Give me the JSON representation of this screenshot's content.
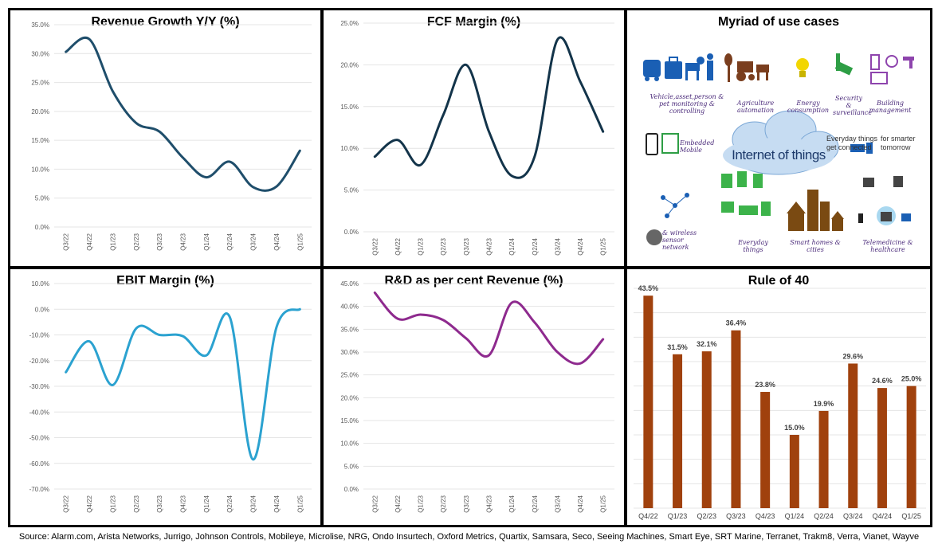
{
  "footer": {
    "source": "Source: Alarm.com, Arista Networks, Jurrigo, Johnson Controls, Mobileye, Microlise, NRG, Ondo Insurtech, Oxford Metrics, Quartix, Samsara, Seco, Seeing Machines, Smart Eye, SRT Marine, Terranet, Trakm8, Verra, Vianet, Wayve"
  },
  "infographic": {
    "title": "Myriad of use cases",
    "center": "Internet of things",
    "connected": "Everyday things get connected",
    "smarter": "for smarter tomorrow",
    "captions": {
      "vehicle": "Vehicle,asset,person & pet monitoring & controlling",
      "agriculture": "Agriculture automation",
      "energy": "Energy consumption",
      "security": "Security & surveillance",
      "building": "Building management",
      "embedded": "Embedded Mobile",
      "sensor": "& wireless sensor network",
      "everyday": "Everyday things",
      "smarthome": "Smart homes & cities",
      "telemedicine": "Telemedicine & healthcare"
    }
  },
  "chart_data": [
    {
      "id": "revenue",
      "type": "line",
      "title": "Revenue Growth Y/Y (%)",
      "color": "#1f4e6b",
      "categories": [
        "Q3/22",
        "Q4/22",
        "Q1/23",
        "Q2/23",
        "Q3/23",
        "Q4/23",
        "Q1/24",
        "Q2/24",
        "Q3/24",
        "Q4/24",
        "Q1/25"
      ],
      "values": [
        30.3,
        32.5,
        23.5,
        18.0,
        16.5,
        12.0,
        8.6,
        11.3,
        6.9,
        7.0,
        13.2
      ],
      "ylim": [
        0,
        35
      ],
      "yticks": [
        0,
        5,
        10,
        15,
        20,
        25,
        30,
        35
      ],
      "ytick_labels": [
        "0.0%",
        "5.0%",
        "10.0%",
        "15.0%",
        "20.0%",
        "25.0%",
        "30.0%",
        "35.0%"
      ]
    },
    {
      "id": "fcf",
      "type": "line",
      "title": "FCF Margin (%)",
      "color": "#13344a",
      "categories": [
        "Q3/22",
        "Q4/22",
        "Q1/23",
        "Q2/23",
        "Q3/23",
        "Q4/23",
        "Q1/24",
        "Q2/24",
        "Q3/24",
        "Q4/24",
        "Q1/25"
      ],
      "values": [
        9.0,
        11.0,
        8.0,
        14.0,
        20.0,
        12.0,
        6.7,
        9.0,
        23.0,
        18.0,
        12.0
      ],
      "ylim": [
        0,
        25
      ],
      "yticks": [
        0,
        5,
        10,
        15,
        20,
        25
      ],
      "ytick_labels": [
        "0.0%",
        "5.0%",
        "10.0%",
        "15.0%",
        "20.0%",
        "25.0%"
      ]
    },
    {
      "id": "ebit",
      "type": "line",
      "title": "EBIT Margin (%)",
      "color": "#2ba2d0",
      "categories": [
        "Q3/22",
        "Q4/22",
        "Q1/23",
        "Q2/23",
        "Q3/23",
        "Q4/23",
        "Q1/24",
        "Q2/24",
        "Q3/24",
        "Q4/24",
        "Q1/25"
      ],
      "values": [
        -24.5,
        -12.5,
        -29.5,
        -7.5,
        -10.0,
        -10.5,
        -18.0,
        -3.0,
        -58.5,
        -7.0,
        0.0
      ],
      "ylim": [
        -70,
        10
      ],
      "yticks": [
        -70,
        -60,
        -50,
        -40,
        -30,
        -20,
        -10,
        0,
        10
      ],
      "ytick_labels": [
        "-70.0%",
        "-60.0%",
        "-50.0%",
        "-40.0%",
        "-30.0%",
        "-20.0%",
        "-10.0%",
        "0.0%",
        "10.0%"
      ]
    },
    {
      "id": "rd",
      "type": "line",
      "title": "R&D as per cent Revenue (%)",
      "color": "#8e2a8e",
      "categories": [
        "Q3/22",
        "Q4/22",
        "Q1/23",
        "Q2/23",
        "Q3/23",
        "Q4/23",
        "Q1/24",
        "Q2/24",
        "Q3/24",
        "Q4/24",
        "Q1/25"
      ],
      "values": [
        43.0,
        37.3,
        38.2,
        37.0,
        33.0,
        29.3,
        40.8,
        36.5,
        30.0,
        27.5,
        32.8
      ],
      "ylim": [
        0,
        45
      ],
      "yticks": [
        0,
        5,
        10,
        15,
        20,
        25,
        30,
        35,
        40,
        45
      ],
      "ytick_labels": [
        "0.0%",
        "5.0%",
        "10.0%",
        "15.0%",
        "20.0%",
        "25.0%",
        "30.0%",
        "35.0%",
        "40.0%",
        "45.0%"
      ]
    },
    {
      "id": "rule40",
      "type": "bar",
      "title": "Rule of 40",
      "color": "#a0410d",
      "categories": [
        "Q4/22",
        "Q1/23",
        "Q2/23",
        "Q3/23",
        "Q4/23",
        "Q1/24",
        "Q2/24",
        "Q3/24",
        "Q4/24",
        "Q1/25"
      ],
      "values": [
        43.5,
        31.5,
        32.1,
        36.4,
        23.8,
        15.0,
        19.9,
        29.6,
        24.6,
        25.0
      ],
      "labels": [
        "43.5%",
        "31.5%",
        "32.1%",
        "36.4%",
        "23.8%",
        "15.0%",
        "19.9%",
        "29.6%",
        "24.6%",
        "25.0%"
      ],
      "ylim": [
        0,
        45
      ]
    }
  ]
}
